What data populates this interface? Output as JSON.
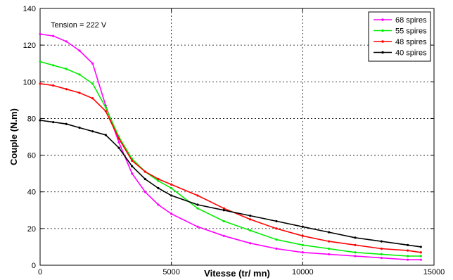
{
  "chart_data": {
    "type": "line",
    "title": "",
    "xlabel": "Vitesse (tr/ mn)",
    "ylabel": "Couple (N.m)",
    "xlim": [
      0,
      15000
    ],
    "ylim": [
      0,
      140
    ],
    "xticks": [
      0,
      5000,
      10000,
      15000
    ],
    "yticks": [
      0,
      20,
      40,
      60,
      80,
      100,
      120,
      140
    ],
    "xtick_labels": [
      "0",
      "5000",
      "10000",
      "15000"
    ],
    "ytick_labels": [
      "0",
      "20",
      "40",
      "60",
      "80",
      "100",
      "120",
      "140"
    ],
    "grid": true,
    "legend_position": "top-right",
    "annotation": "Tension = 222 V",
    "series": [
      {
        "name": "68 spires",
        "color": "#ff00ff",
        "x": [
          0,
          500,
          1000,
          1500,
          2000,
          2500,
          3000,
          3500,
          4000,
          4500,
          5000,
          6000,
          7000,
          8000,
          9000,
          10000,
          11000,
          12000,
          13000,
          14000,
          14500
        ],
        "y": [
          126,
          125,
          122,
          117,
          110,
          87,
          67,
          50,
          40,
          33,
          28,
          21,
          16,
          12,
          9,
          7,
          6,
          5,
          4,
          3,
          3
        ]
      },
      {
        "name": "55 spires",
        "color": "#00ee00",
        "x": [
          0,
          500,
          1000,
          1500,
          2000,
          2500,
          3000,
          3500,
          4000,
          4500,
          5000,
          6000,
          7000,
          8000,
          9000,
          10000,
          11000,
          12000,
          13000,
          14000,
          14500
        ],
        "y": [
          111,
          109,
          107,
          104,
          99,
          86,
          70,
          58,
          51,
          46,
          42,
          31,
          24,
          19,
          14,
          11,
          9,
          7,
          6,
          5,
          5
        ]
      },
      {
        "name": "48 spires",
        "color": "#ff0000",
        "x": [
          0,
          500,
          1000,
          1500,
          2000,
          2500,
          3000,
          3500,
          4000,
          4500,
          5000,
          6000,
          7000,
          8000,
          9000,
          10000,
          11000,
          12000,
          13000,
          14000,
          14500
        ],
        "y": [
          99,
          98,
          96,
          94,
          91,
          84,
          69,
          57,
          51,
          47,
          44,
          38,
          31,
          25,
          20,
          16,
          13,
          11,
          9,
          8,
          7
        ]
      },
      {
        "name": "40 spires",
        "color": "#000000",
        "x": [
          0,
          500,
          1000,
          1500,
          2000,
          2500,
          3000,
          3500,
          4000,
          4500,
          5000,
          6000,
          7000,
          8000,
          9000,
          10000,
          11000,
          12000,
          13000,
          14000,
          14500
        ],
        "y": [
          79,
          78,
          77,
          75,
          73,
          71,
          64,
          54,
          47,
          42,
          38,
          33,
          30,
          27,
          24,
          21,
          18,
          15,
          13,
          11,
          10
        ]
      }
    ]
  }
}
